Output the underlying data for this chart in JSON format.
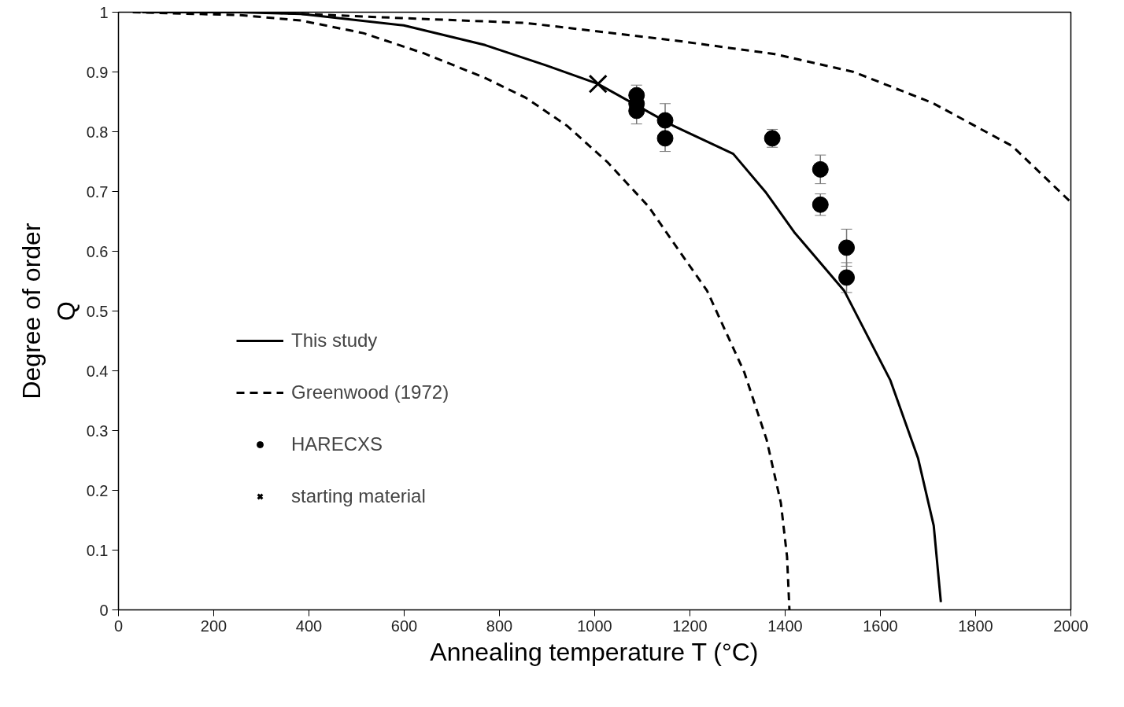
{
  "chart_data": {
    "type": "line",
    "xlabel": "Annealing temperature T (°C)",
    "ylabel": "Degree of order\nQ",
    "xlim": [
      0,
      2000
    ],
    "ylim": [
      0,
      1
    ],
    "xticks": [
      0,
      200,
      400,
      600,
      800,
      1000,
      1200,
      1400,
      1600,
      1800,
      2000
    ],
    "yticks": [
      0,
      0.1,
      0.2,
      0.3,
      0.4,
      0.5,
      0.6,
      0.7,
      0.8,
      0.9,
      1
    ],
    "legend": "left",
    "series": [
      {
        "name": "This study",
        "line_style": "solid",
        "color": "#000000",
        "x": [
          50,
          250,
          384,
          599,
          770,
          898,
          1007,
          1165,
          1291,
          1360,
          1419,
          1524,
          1621,
          1679,
          1712,
          1727
        ],
        "values": [
          1,
          1,
          0.997,
          0.978,
          0.945,
          0.911,
          0.88,
          0.81,
          0.763,
          0.698,
          0.632,
          0.534,
          0.384,
          0.254,
          0.141,
          0.013
        ]
      },
      {
        "name": "Greenwood (1972)",
        "line_style": "dashed",
        "color": "#000000",
        "x": [
          30,
          256,
          384,
          514,
          642,
          770,
          855,
          942,
          1027,
          1113,
          1165,
          1236,
          1314,
          1361,
          1391,
          1404,
          1409
        ],
        "values": [
          1,
          0.995,
          0.986,
          0.965,
          0.931,
          0.89,
          0.857,
          0.81,
          0.749,
          0.675,
          0.615,
          0.534,
          0.398,
          0.285,
          0.179,
          0.089,
          0
        ]
      },
      {
        "line_style": "dashed",
        "color": "#000000",
        "x": [
          300,
          599,
          855,
          1165,
          1378,
          1544,
          1710,
          1877,
          2000
        ],
        "values": [
          1,
          0.99,
          0.982,
          0.953,
          0.93,
          0.9,
          0.848,
          0.776,
          0.682
        ]
      },
      {
        "name": "HARECXS",
        "type": "scatter",
        "marker": "circle",
        "color": "#000000",
        "x": [
          1088,
          1088,
          1088,
          1148,
          1148,
          1373,
          1474,
          1474,
          1529,
          1529
        ],
        "values": [
          0.861,
          0.847,
          0.835,
          0.819,
          0.789,
          0.789,
          0.737,
          0.678,
          0.606,
          0.556
        ],
        "errors": [
          0.017,
          null,
          0.022,
          0.028,
          0.022,
          0.015,
          0.024,
          0.018,
          0.031,
          0.025
        ]
      },
      {
        "name": "starting material",
        "type": "scatter",
        "marker": "cross",
        "color": "#000000",
        "x": [
          1007
        ],
        "values": [
          0.88
        ]
      }
    ]
  }
}
